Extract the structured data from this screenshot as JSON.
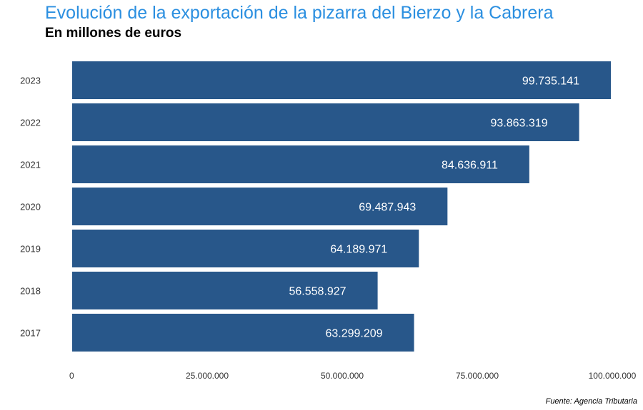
{
  "chart_data": {
    "type": "bar",
    "orientation": "horizontal",
    "title": "Evolución de la exportación de la pizarra del Bierzo y la Cabrera",
    "subtitle": "En millones de euros",
    "caption": "Fuente: Agencia Tributaria",
    "categories": [
      "2023",
      "2022",
      "2021",
      "2020",
      "2019",
      "2018",
      "2017"
    ],
    "values": [
      99735141,
      93863319,
      84636911,
      69487943,
      64189971,
      56558927,
      63299209
    ],
    "value_labels": [
      "99.735.141",
      "93.863.319",
      "84.636.911",
      "69.487.943",
      "64.189.971",
      "56.558.927",
      "63.299.209"
    ],
    "xlim": [
      0,
      100000000
    ],
    "xticks": [
      0,
      25000000,
      50000000,
      75000000,
      100000000
    ],
    "xtick_labels": [
      "0",
      "25.000.000",
      "50.000.000",
      "75.000.000",
      "100.000.000"
    ],
    "grid": false,
    "colors": {
      "bar": "#28578a",
      "bar_label": "#ffffff",
      "title": "#2b8fe0"
    }
  }
}
